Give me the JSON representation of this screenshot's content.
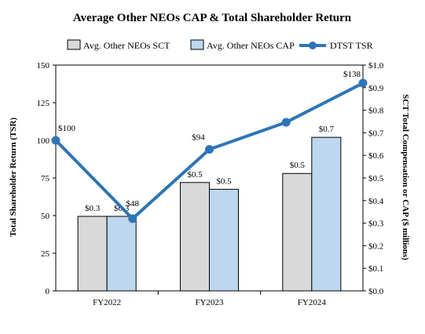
{
  "chart_data": {
    "type": "bar",
    "title": "Average Other NEOs CAP & Total Shareholder Return",
    "categories": [
      "FY2022",
      "FY2023",
      "FY2024"
    ],
    "series": [
      {
        "name": "Avg. Other NEOs SCT",
        "kind": "bar",
        "axis": "right",
        "values": [
          0.33,
          0.48,
          0.52
        ],
        "labels": [
          "$0.3",
          "$0.5",
          "$0.5"
        ],
        "color": "#d9d9d9"
      },
      {
        "name": "Avg. Other NEOs CAP",
        "kind": "bar",
        "axis": "right",
        "values": [
          0.33,
          0.45,
          0.68
        ],
        "labels": [
          "$0.3",
          "$0.5",
          "$0.7"
        ],
        "color": "#bdd7ee"
      },
      {
        "name": "DTST TSR",
        "kind": "line",
        "axis": "left",
        "x": [
          "FY2022",
          "FY2022-FY2023",
          "FY2023",
          "FY2023-FY2024",
          "FY2024"
        ],
        "values": [
          100,
          48,
          94,
          112,
          138
        ],
        "labels": [
          "$100",
          "$48",
          "$94",
          "",
          "$138"
        ],
        "color": "#2e75b6"
      }
    ],
    "ylabel_left": "Total Shareholder Return (TSR)",
    "ylabel_right": "SCT Total Compensation or CAP ($ millions)",
    "ylim_left": [
      0,
      150
    ],
    "ylim_right": [
      0,
      1.0
    ],
    "yticks_left": [
      "0",
      "25",
      "50",
      "75",
      "100",
      "125",
      "150"
    ],
    "yticks_right": [
      "$0.0",
      "$0.1",
      "$0.2",
      "$0.3",
      "$0.4",
      "$0.5",
      "$0.6",
      "$0.7",
      "$0.8",
      "$0.9",
      "$1.0"
    ],
    "legend_position": "top",
    "grid": false
  }
}
